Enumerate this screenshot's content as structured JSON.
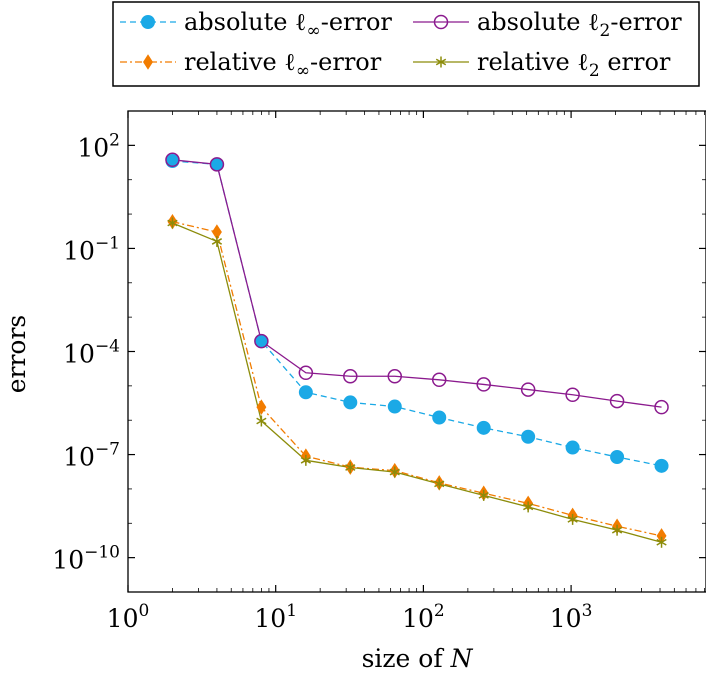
{
  "chart_data": {
    "type": "line",
    "xlabel": "size of N",
    "xlabel_prefix": "size of ",
    "xlabel_var": "N",
    "ylabel": "errors",
    "x_scale": "log",
    "y_scale": "log",
    "xlim": [
      1,
      8192
    ],
    "ylim": [
      1e-11,
      1000.0
    ],
    "x_ticks": [
      {
        "value": 1,
        "base": "10",
        "exp": "0"
      },
      {
        "value": 10,
        "base": "10",
        "exp": "1"
      },
      {
        "value": 100,
        "base": "10",
        "exp": "2"
      },
      {
        "value": 1000,
        "base": "10",
        "exp": "3"
      }
    ],
    "y_ticks": [
      {
        "value": 100,
        "base": "10",
        "exp": "2"
      },
      {
        "value": 0.1,
        "base": "10",
        "exp": "−1"
      },
      {
        "value": 0.0001,
        "base": "10",
        "exp": "−4"
      },
      {
        "value": 1e-07,
        "base": "10",
        "exp": "−7"
      },
      {
        "value": 1e-10,
        "base": "10",
        "exp": "−10"
      }
    ],
    "grid": false,
    "legend_position": "top",
    "x": [
      2,
      4,
      8,
      16,
      32,
      64,
      128,
      256,
      512,
      1024,
      2048,
      4096
    ],
    "series": [
      {
        "name": "absolute ℓ∞-error",
        "legend_pre": "absolute ℓ",
        "legend_sub": "∞",
        "legend_post": "-error",
        "color": "#1ba9e6",
        "marker": "circle-filled",
        "dash": "dashed",
        "values": [
          35,
          28,
          0.0002,
          6.5e-06,
          3.3e-06,
          2.5e-06,
          1.2e-06,
          6e-07,
          3.3e-07,
          1.6e-07,
          8.5e-08,
          4.7e-08
        ]
      },
      {
        "name": "absolute ℓ2-error",
        "legend_pre": "absolute ℓ",
        "legend_sub": "2",
        "legend_post": "-error",
        "color": "#8b1a8e",
        "marker": "circle-open",
        "dash": "solid",
        "values": [
          38,
          28,
          0.0002,
          2.4e-05,
          1.9e-05,
          1.9e-05,
          1.5e-05,
          1.1e-05,
          7.8e-06,
          5.5e-06,
          3.6e-06,
          2.4e-06
        ]
      },
      {
        "name": "relative ℓ∞-error",
        "legend_pre": "relative ℓ",
        "legend_sub": "∞",
        "legend_post": "-error",
        "color": "#f27c00",
        "marker": "diamond",
        "dash": "dashdot",
        "values": [
          0.6,
          0.3,
          2.4e-06,
          9e-08,
          4.3e-08,
          3.4e-08,
          1.5e-08,
          7.5e-09,
          3.8e-09,
          1.7e-09,
          8.2e-10,
          4.3e-10
        ]
      },
      {
        "name": "relative ℓ2 error",
        "legend_pre": "relative ℓ",
        "legend_sub": "2",
        "legend_post": " error",
        "color": "#8c8c0a",
        "marker": "star",
        "dash": "solid",
        "values": [
          0.55,
          0.16,
          9.5e-07,
          6.8e-08,
          4.2e-08,
          3.1e-08,
          1.4e-08,
          6.5e-09,
          3e-09,
          1.3e-09,
          6.3e-10,
          2.8e-10
        ]
      }
    ]
  }
}
